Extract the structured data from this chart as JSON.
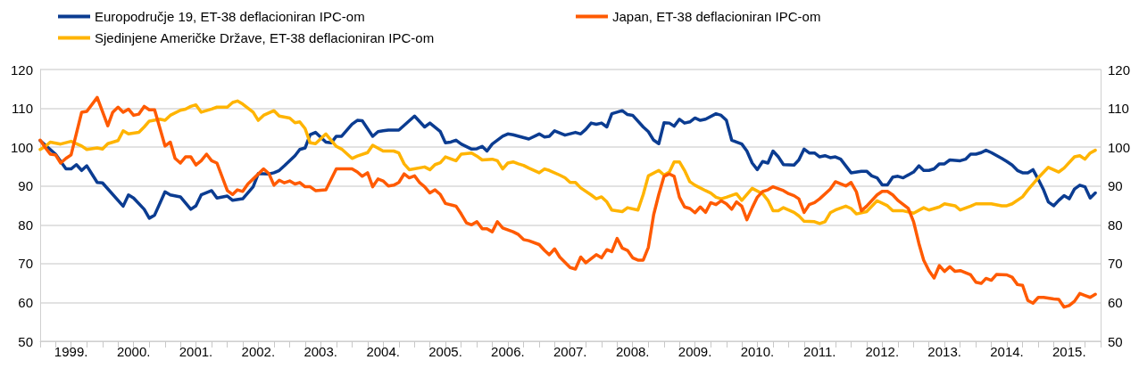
{
  "chart_data": {
    "type": "line",
    "series": [
      {
        "name": "Europodručje 19, ET-38 deflacioniran IPC-om",
        "color": "#0b3c91",
        "x": [
          "1999-01",
          "1999-04",
          "1999-06",
          "1999-07",
          "1999-08",
          "1999-09",
          "1999-10",
          "1999-12",
          "2000-01",
          "2000-05",
          "2000-06",
          "2000-07",
          "2000-09",
          "2000-10",
          "2000-11",
          "2001-01",
          "2001-02",
          "2001-04",
          "2001-06",
          "2001-07",
          "2001-08",
          "2001-10",
          "2001-11",
          "2002-01",
          "2002-02",
          "2002-04",
          "2002-06",
          "2002-07",
          "2002-09",
          "2002-10",
          "2002-11",
          "2002-12",
          "2003-02",
          "2003-03",
          "2003-04",
          "2003-05",
          "2003-06",
          "2003-08",
          "2003-09",
          "2003-10",
          "2003-11",
          "2004-01",
          "2004-02",
          "2004-03",
          "2004-05",
          "2004-06",
          "2004-07",
          "2004-08",
          "2004-10",
          "2005-01",
          "2005-03",
          "2005-04",
          "2005-06",
          "2005-07",
          "2005-08",
          "2005-09",
          "2005-10",
          "2005-12",
          "2006-01",
          "2006-02",
          "2006-03",
          "2006-04",
          "2006-06",
          "2006-07",
          "2006-08",
          "2006-11",
          "2007-01",
          "2007-02",
          "2007-03",
          "2007-04",
          "2007-06",
          "2007-08",
          "2007-09",
          "2007-10",
          "2007-11",
          "2007-12",
          "2008-01",
          "2008-02",
          "2008-03",
          "2008-05",
          "2008-06",
          "2008-07",
          "2008-09",
          "2008-10",
          "2008-11",
          "2008-12",
          "2009-01",
          "2009-02",
          "2009-03",
          "2009-04",
          "2009-05",
          "2009-06",
          "2009-07",
          "2009-08",
          "2009-09",
          "2009-11",
          "2009-12",
          "2010-01",
          "2010-02",
          "2010-04",
          "2010-05",
          "2010-06",
          "2010-07",
          "2010-08",
          "2010-09",
          "2010-10",
          "2010-11",
          "2010-12",
          "2011-02",
          "2011-03",
          "2011-04",
          "2011-05",
          "2011-06",
          "2011-07",
          "2011-08",
          "2011-09",
          "2011-10",
          "2011-11",
          "2011-12",
          "2012-01",
          "2012-03",
          "2012-04",
          "2012-05",
          "2012-06",
          "2012-07",
          "2012-08",
          "2012-09",
          "2012-10",
          "2012-11",
          "2013-01",
          "2013-02",
          "2013-03",
          "2013-04",
          "2013-05",
          "2013-06",
          "2013-07",
          "2013-08",
          "2013-10",
          "2013-11",
          "2013-12",
          "2014-01",
          "2014-02",
          "2014-03",
          "2014-04",
          "2014-06",
          "2014-07",
          "2014-08",
          "2014-09",
          "2014-10",
          "2014-11",
          "2014-12",
          "2015-01",
          "2015-02",
          "2015-03",
          "2015-04",
          "2015-05",
          "2015-06",
          "2015-07",
          "2015-08",
          "2015-09",
          "2015-10",
          "2015-11",
          "2015-12"
        ],
        "values": [
          101.7,
          98.2,
          94.4,
          94.4,
          95.5,
          94,
          95.2,
          90.9,
          90.8,
          84.8,
          87.7,
          86.9,
          84,
          81.7,
          82.5,
          88.5,
          87.7,
          87.2,
          84,
          84.9,
          87.7,
          88.8,
          86.9,
          87.4,
          86.3,
          86.7,
          89.8,
          93.2,
          93.1,
          93.4,
          94,
          95.2,
          97.8,
          99.4,
          99.8,
          103.2,
          103.8,
          101.3,
          101.1,
          102.8,
          102.8,
          105.9,
          106.9,
          106.8,
          102.8,
          104,
          104.2,
          104.4,
          104.4,
          108,
          105.2,
          106.2,
          104,
          101.1,
          101.3,
          101.8,
          100.8,
          99.5,
          99.6,
          100.2,
          99,
          100.8,
          102.8,
          103.4,
          103.2,
          102.1,
          103.4,
          102.6,
          102.8,
          104.2,
          103.1,
          103.8,
          103.4,
          104.6,
          106.2,
          105.9,
          106.2,
          105.2,
          108.6,
          109.4,
          108.4,
          108.2,
          105.2,
          104,
          101.8,
          100.9,
          106.3,
          106.2,
          105.4,
          107.2,
          106.2,
          106.5,
          107.5,
          106.9,
          107.2,
          108.6,
          108.2,
          106.9,
          101.8,
          100.8,
          99,
          95.9,
          94.2,
          96.3,
          95.9,
          99,
          97.5,
          95.5,
          95.4,
          96.7,
          99.5,
          98.5,
          98.5,
          97.5,
          97.8,
          97.3,
          97.5,
          96.9,
          95.2,
          93.4,
          93.8,
          93.8,
          92.6,
          92.1,
          90.3,
          90.3,
          92.3,
          92.5,
          92.1,
          93.6,
          95.2,
          94,
          94,
          94.4,
          95.7,
          95.7,
          96.7,
          96.5,
          96.9,
          98.2,
          98.2,
          98.6,
          99.2,
          98.6,
          97.1,
          96.3,
          95.4,
          94,
          93.4,
          93.4,
          94.2,
          91.7,
          89,
          85.9,
          84.9,
          86.3,
          87.5,
          86.7,
          89.2,
          90.2,
          89.8,
          86.9,
          88.2
        ]
      },
      {
        "name": "Sjedinjene Američke Države, ET-38 deflacioniran IPC-om",
        "color": "#ffb400",
        "x": [
          "1999-01",
          "1999-02",
          "1999-03",
          "1999-05",
          "1999-07",
          "1999-09",
          "1999-10",
          "1999-12",
          "2000-01",
          "2000-02",
          "2000-04",
          "2000-05",
          "2000-06",
          "2000-08",
          "2000-09",
          "2000-10",
          "2000-12",
          "2001-01",
          "2001-02",
          "2001-04",
          "2001-05",
          "2001-06",
          "2001-07",
          "2001-08",
          "2001-10",
          "2001-11",
          "2002-01",
          "2002-02",
          "2002-03",
          "2002-04",
          "2002-06",
          "2002-07",
          "2002-08",
          "2002-10",
          "2002-11",
          "2003-01",
          "2003-02",
          "2003-03",
          "2003-04",
          "2003-05",
          "2003-06",
          "2003-08",
          "2003-10",
          "2003-11",
          "2004-01",
          "2004-02",
          "2004-04",
          "2004-05",
          "2004-07",
          "2004-09",
          "2004-10",
          "2004-11",
          "2004-12",
          "2005-03",
          "2005-04",
          "2005-05",
          "2005-06",
          "2005-07",
          "2005-09",
          "2005-10",
          "2005-12",
          "2006-01",
          "2006-02",
          "2006-04",
          "2006-05",
          "2006-06",
          "2006-07",
          "2006-08",
          "2006-09",
          "2006-10",
          "2006-11",
          "2007-01",
          "2007-02",
          "2007-03",
          "2007-05",
          "2007-06",
          "2007-07",
          "2007-08",
          "2007-09",
          "2007-11",
          "2007-12",
          "2008-01",
          "2008-02",
          "2008-03",
          "2008-05",
          "2008-06",
          "2008-08",
          "2008-09",
          "2008-10",
          "2008-12",
          "2009-01",
          "2009-02",
          "2009-03",
          "2009-04",
          "2009-05",
          "2009-06",
          "2009-07",
          "2009-09",
          "2009-10",
          "2009-11",
          "2009-12",
          "2010-01",
          "2010-03",
          "2010-04",
          "2010-06",
          "2010-08",
          "2010-09",
          "2010-10",
          "2010-11",
          "2010-12",
          "2011-02",
          "2011-03",
          "2011-04",
          "2011-06",
          "2011-07",
          "2011-08",
          "2011-09",
          "2011-10",
          "2011-12",
          "2012-01",
          "2012-02",
          "2012-04",
          "2012-06",
          "2012-08",
          "2012-09",
          "2012-11",
          "2013-01",
          "2013-03",
          "2013-04",
          "2013-06",
          "2013-07",
          "2013-09",
          "2013-10",
          "2013-12",
          "2014-01",
          "2014-04",
          "2014-06",
          "2014-07",
          "2014-08",
          "2014-10",
          "2014-11",
          "2015-01",
          "2015-03",
          "2015-05",
          "2015-06",
          "2015-08",
          "2015-09",
          "2015-10",
          "2015-11",
          "2015-12"
        ],
        "values": [
          99.4,
          100.2,
          101.3,
          100.8,
          101.5,
          100.3,
          99.4,
          99.8,
          99.5,
          100.9,
          101.7,
          104.2,
          103.4,
          103.8,
          105.2,
          106.7,
          107.2,
          106.9,
          108.2,
          109.5,
          109.8,
          110.5,
          110.9,
          109,
          109.8,
          110.3,
          110.3,
          111.5,
          111.9,
          111.1,
          109,
          106.9,
          108.2,
          109.4,
          108,
          107.5,
          106.3,
          106.5,
          104.8,
          101.1,
          100.9,
          103.4,
          100.2,
          99.5,
          97.1,
          97.7,
          98.6,
          100.5,
          99,
          99,
          98.5,
          95.7,
          94.2,
          94.9,
          94.2,
          95.5,
          96,
          97.5,
          96.5,
          98.2,
          98.5,
          97.7,
          96.7,
          96.9,
          96.5,
          94.4,
          95.9,
          96.2,
          95.7,
          95.3,
          94.6,
          93.4,
          94.4,
          94,
          92.8,
          92.1,
          90.9,
          90.9,
          89.5,
          87.7,
          86.7,
          87.2,
          85.9,
          83.8,
          83.4,
          84.4,
          83.8,
          87.8,
          92.6,
          94,
          92.8,
          93.6,
          96.2,
          96.2,
          94,
          91.1,
          90.2,
          88.8,
          88.2,
          87.1,
          86.7,
          87.1,
          88,
          86.3,
          89.4,
          88,
          86.3,
          83.6,
          83.6,
          84.4,
          83.2,
          82.3,
          80.9,
          80.8,
          80.3,
          80.8,
          83.1,
          83.8,
          84.8,
          84.2,
          82.8,
          83.4,
          86.2,
          84.9,
          83.6,
          83.6,
          83,
          84.4,
          83.8,
          84.6,
          85.4,
          84.9,
          83.8,
          84.8,
          85.4,
          85.4,
          84.9,
          84.9,
          85.4,
          87.2,
          89,
          92.1,
          94.8,
          93.6,
          94.6,
          97.5,
          97.8,
          96.9,
          98.5,
          99.2
        ]
      },
      {
        "name": "Japan, ET-38 deflacioniran IPC-om",
        "color": "#ff5a00",
        "x": [
          "1999-01",
          "1999-02",
          "1999-03",
          "1999-04",
          "1999-05",
          "1999-06",
          "1999-07",
          "1999-09",
          "1999-10",
          "1999-12",
          "2000-02",
          "2000-03",
          "2000-04",
          "2000-05",
          "2000-06",
          "2000-07",
          "2000-08",
          "2000-09",
          "2000-10",
          "2000-11",
          "2001-01",
          "2001-02",
          "2001-03",
          "2001-04",
          "2001-05",
          "2001-06",
          "2001-07",
          "2001-08",
          "2001-09",
          "2001-10",
          "2001-11",
          "2002-01",
          "2002-02",
          "2002-03",
          "2002-04",
          "2002-05",
          "2002-06",
          "2002-08",
          "2002-09",
          "2002-10",
          "2002-11",
          "2002-12",
          "2003-01",
          "2003-02",
          "2003-03",
          "2003-04",
          "2003-05",
          "2003-06",
          "2003-08",
          "2003-10",
          "2004-01",
          "2004-02",
          "2004-03",
          "2004-04",
          "2004-05",
          "2004-06",
          "2004-07",
          "2004-08",
          "2004-09",
          "2004-10",
          "2004-11",
          "2004-12",
          "2005-01",
          "2005-02",
          "2005-03",
          "2005-04",
          "2005-05",
          "2005-06",
          "2005-07",
          "2005-09",
          "2005-10",
          "2005-11",
          "2005-12",
          "2006-01",
          "2006-02",
          "2006-03",
          "2006-04",
          "2006-05",
          "2006-06",
          "2006-08",
          "2006-09",
          "2006-10",
          "2006-11",
          "2007-01",
          "2007-02",
          "2007-03",
          "2007-04",
          "2007-05",
          "2007-07",
          "2007-08",
          "2007-09",
          "2007-10",
          "2007-12",
          "2008-01",
          "2008-02",
          "2008-03",
          "2008-04",
          "2008-05",
          "2008-06",
          "2008-07",
          "2008-08",
          "2008-09",
          "2008-10",
          "2008-11",
          "2008-12",
          "2009-01",
          "2009-02",
          "2009-03",
          "2009-04",
          "2009-05",
          "2009-06",
          "2009-07",
          "2009-08",
          "2009-09",
          "2009-10",
          "2009-11",
          "2009-12",
          "2010-01",
          "2010-02",
          "2010-03",
          "2010-04",
          "2010-05",
          "2010-06",
          "2010-07",
          "2010-08",
          "2010-09",
          "2010-10",
          "2010-12",
          "2011-01",
          "2011-02",
          "2011-03",
          "2011-04",
          "2011-05",
          "2011-06",
          "2011-07",
          "2011-09",
          "2011-10",
          "2011-12",
          "2012-01",
          "2012-02",
          "2012-03",
          "2012-04",
          "2012-06",
          "2012-07",
          "2012-08",
          "2012-09",
          "2012-10",
          "2012-12",
          "2013-01",
          "2013-02",
          "2013-03",
          "2013-04",
          "2013-05",
          "2013-06",
          "2013-07",
          "2013-08",
          "2013-09",
          "2013-10",
          "2013-12",
          "2014-01",
          "2014-02",
          "2014-03",
          "2014-04",
          "2014-05",
          "2014-07",
          "2014-08",
          "2014-09",
          "2014-10",
          "2014-11",
          "2014-12",
          "2015-01",
          "2015-02",
          "2015-04",
          "2015-05",
          "2015-06",
          "2015-07",
          "2015-08",
          "2015-09",
          "2015-10",
          "2015-11",
          "2015-12"
        ],
        "values": [
          101.8,
          99.8,
          98.2,
          98,
          95.9,
          97.1,
          98,
          109,
          109.2,
          112.8,
          105.5,
          109,
          110.3,
          109,
          109.8,
          108.2,
          108.5,
          110.5,
          109.6,
          109.6,
          100.3,
          101.3,
          97.1,
          95.9,
          97.5,
          97.5,
          95.4,
          96.5,
          98.2,
          96.5,
          95.9,
          88.8,
          87.8,
          89,
          88.6,
          90.5,
          91.8,
          94.4,
          93.2,
          90.2,
          91.5,
          90.8,
          91.3,
          90.5,
          90.9,
          89.8,
          89.8,
          88.8,
          89,
          94.4,
          94.4,
          93.6,
          92.5,
          93.4,
          89.8,
          91.8,
          91.3,
          90,
          90.2,
          90.9,
          93.1,
          92.1,
          92.6,
          90.8,
          89.8,
          88.2,
          89,
          87.8,
          85.5,
          84.8,
          82.8,
          80.5,
          80,
          80.8,
          79,
          79,
          78.2,
          80.8,
          79.2,
          78.2,
          77.5,
          76.2,
          75.9,
          74.9,
          73.4,
          72.3,
          73.8,
          71.7,
          69,
          68.6,
          71.7,
          70.2,
          72.3,
          71.5,
          73.6,
          73.1,
          76.5,
          74,
          73.4,
          71.5,
          70.9,
          70.9,
          74.2,
          82.6,
          87.8,
          92.5,
          93.1,
          92.5,
          87.1,
          84.6,
          84.2,
          83.1,
          84.6,
          83.2,
          85.7,
          85.2,
          86.2,
          85.4,
          84,
          85.9,
          84.8,
          81.3,
          84.4,
          87.1,
          88.6,
          89,
          89.8,
          88.8,
          88,
          87.5,
          86.7,
          83.2,
          85.2,
          85.7,
          86.7,
          89.2,
          91.1,
          90,
          90.9,
          88.5,
          83.6,
          84.8,
          87.7,
          88.6,
          88.6,
          87.7,
          86.3,
          84.2,
          80.8,
          75.2,
          70.9,
          68.2,
          66.3,
          69.5,
          68,
          69.2,
          68,
          68.2,
          67.1,
          65.2,
          64.9,
          66.2,
          65.7,
          67.2,
          67.1,
          66.5,
          64.6,
          64.4,
          60.5,
          59.8,
          61.3,
          61.3,
          60.9,
          60.8,
          58.8,
          59.2,
          60.3,
          62.3,
          61.8,
          61.3,
          62.1
        ]
      }
    ],
    "xlim": [
      "1999-01",
      "2016-01"
    ],
    "xticks": [
      {
        "value": "1999-01",
        "label": null
      },
      {
        "value": "1999-04",
        "label": null
      },
      {
        "value": "1999-07",
        "label": "1999."
      },
      {
        "value": "1999-10",
        "label": null
      },
      {
        "value": "2000-01",
        "label": null
      },
      {
        "value": "2000-04",
        "label": null
      },
      {
        "value": "2000-07",
        "label": "2000."
      },
      {
        "value": "2000-10",
        "label": null
      },
      {
        "value": "2001-01",
        "label": null
      },
      {
        "value": "2001-04",
        "label": null
      },
      {
        "value": "2001-07",
        "label": "2001."
      },
      {
        "value": "2001-10",
        "label": null
      },
      {
        "value": "2002-01",
        "label": null
      },
      {
        "value": "2002-04",
        "label": null
      },
      {
        "value": "2002-07",
        "label": "2002."
      },
      {
        "value": "2002-10",
        "label": null
      },
      {
        "value": "2003-01",
        "label": null
      },
      {
        "value": "2003-04",
        "label": null
      },
      {
        "value": "2003-07",
        "label": "2003."
      },
      {
        "value": "2003-10",
        "label": null
      },
      {
        "value": "2004-01",
        "label": null
      },
      {
        "value": "2004-04",
        "label": null
      },
      {
        "value": "2004-07",
        "label": "2004."
      },
      {
        "value": "2004-10",
        "label": null
      },
      {
        "value": "2005-01",
        "label": null
      },
      {
        "value": "2005-04",
        "label": null
      },
      {
        "value": "2005-07",
        "label": "2005."
      },
      {
        "value": "2005-10",
        "label": null
      },
      {
        "value": "2006-01",
        "label": null
      },
      {
        "value": "2006-04",
        "label": null
      },
      {
        "value": "2006-07",
        "label": "2006."
      },
      {
        "value": "2006-10",
        "label": null
      },
      {
        "value": "2007-01",
        "label": null
      },
      {
        "value": "2007-04",
        "label": null
      },
      {
        "value": "2007-07",
        "label": "2007."
      },
      {
        "value": "2007-10",
        "label": null
      },
      {
        "value": "2008-01",
        "label": null
      },
      {
        "value": "2008-04",
        "label": null
      },
      {
        "value": "2008-07",
        "label": "2008."
      },
      {
        "value": "2008-10",
        "label": null
      },
      {
        "value": "2009-01",
        "label": null
      },
      {
        "value": "2009-04",
        "label": null
      },
      {
        "value": "2009-07",
        "label": "2009."
      },
      {
        "value": "2009-10",
        "label": null
      },
      {
        "value": "2010-01",
        "label": null
      },
      {
        "value": "2010-04",
        "label": null
      },
      {
        "value": "2010-07",
        "label": "2010."
      },
      {
        "value": "2010-10",
        "label": null
      },
      {
        "value": "2011-01",
        "label": null
      },
      {
        "value": "2011-04",
        "label": null
      },
      {
        "value": "2011-07",
        "label": "2011."
      },
      {
        "value": "2011-10",
        "label": null
      },
      {
        "value": "2012-01",
        "label": null
      },
      {
        "value": "2012-04",
        "label": null
      },
      {
        "value": "2012-07",
        "label": "2012."
      },
      {
        "value": "2012-10",
        "label": null
      },
      {
        "value": "2013-01",
        "label": null
      },
      {
        "value": "2013-04",
        "label": null
      },
      {
        "value": "2013-07",
        "label": "2013."
      },
      {
        "value": "2013-10",
        "label": null
      },
      {
        "value": "2014-01",
        "label": null
      },
      {
        "value": "2014-04",
        "label": null
      },
      {
        "value": "2014-07",
        "label": "2014."
      },
      {
        "value": "2014-10",
        "label": null
      },
      {
        "value": "2015-01",
        "label": null
      },
      {
        "value": "2015-04",
        "label": null
      },
      {
        "value": "2015-07",
        "label": "2015."
      },
      {
        "value": "2015-10",
        "label": null
      },
      {
        "value": "2016-01",
        "label": null
      }
    ],
    "ylim": [
      50,
      120
    ],
    "yticks": [
      50,
      60,
      70,
      80,
      90,
      100,
      110,
      120
    ],
    "y2lim": [
      50,
      120
    ],
    "y2ticks": [
      50,
      60,
      70,
      80,
      90,
      100,
      110,
      120
    ],
    "grid": "y",
    "legend": "top left"
  }
}
